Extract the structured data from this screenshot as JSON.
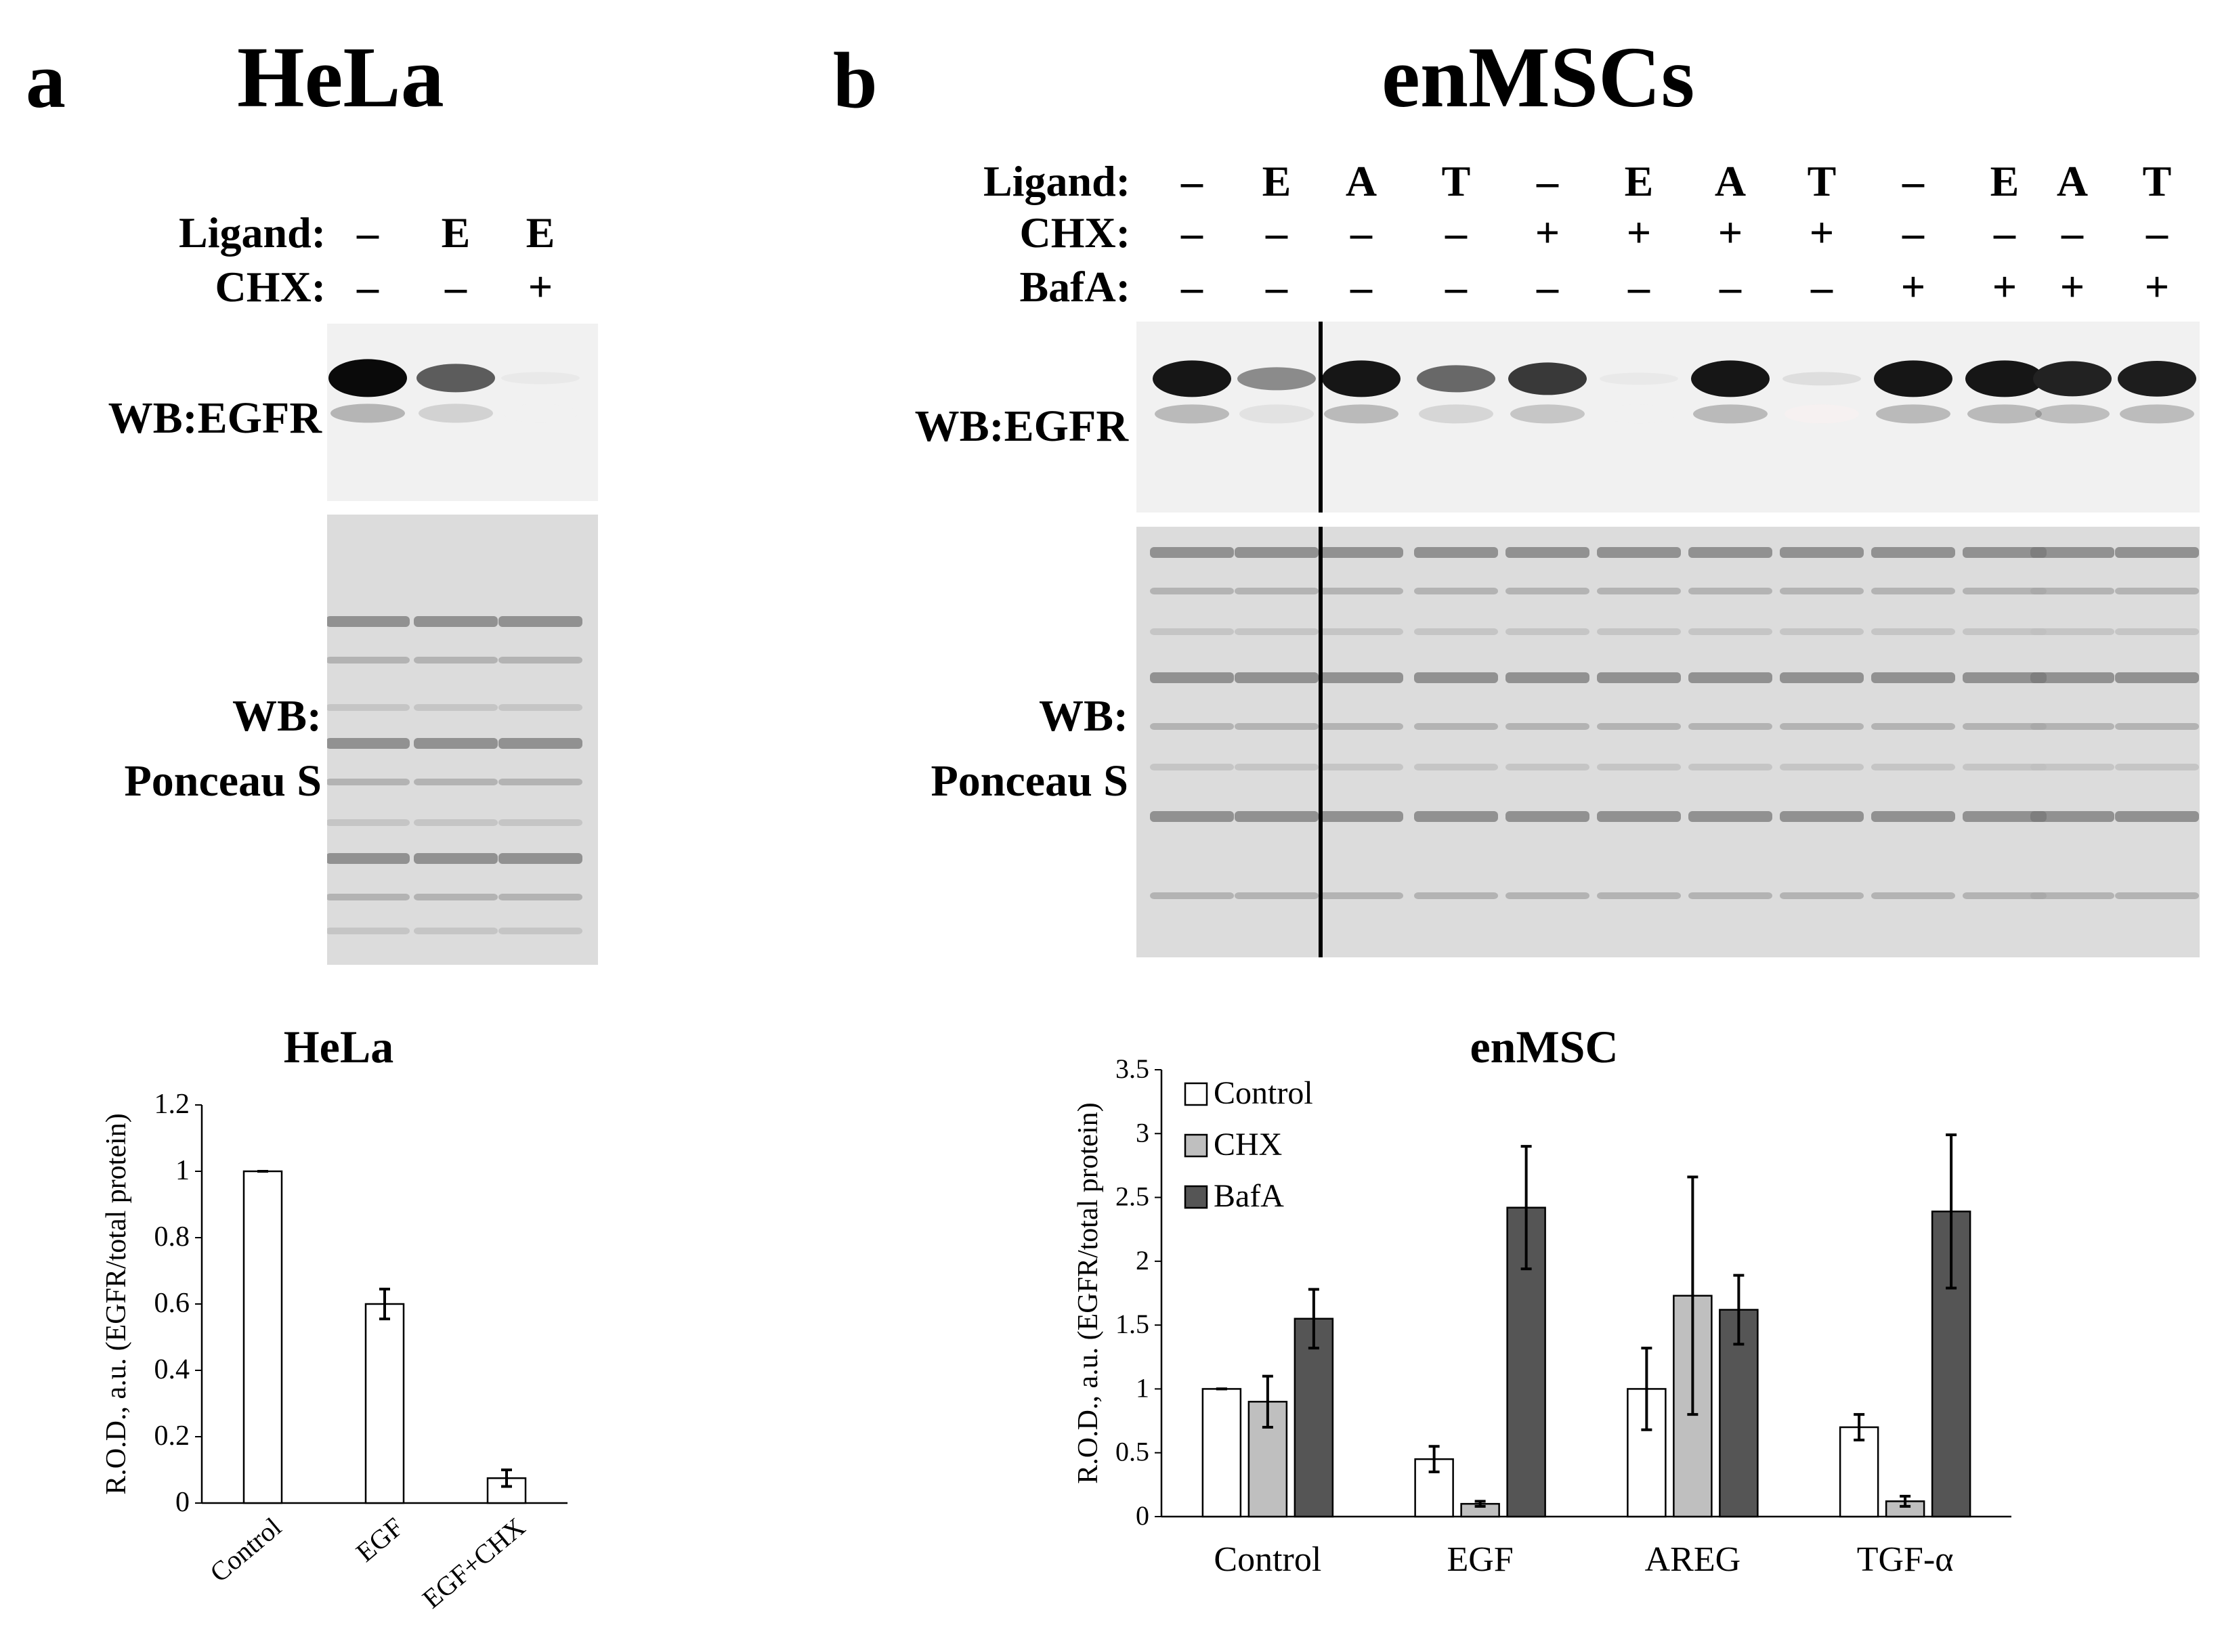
{
  "panel_a": {
    "letter": "a",
    "title": "HeLa",
    "rows": [
      {
        "label": "Ligand:",
        "marks": [
          "–",
          "E",
          "E"
        ]
      },
      {
        "label": "CHX:",
        "marks": [
          "–",
          "–",
          "+"
        ]
      }
    ],
    "wb_egfr_label": "WB:EGFR",
    "wb_ponceau_line1": "WB:",
    "wb_ponceau_line2": "Ponceau S",
    "egfr_band_intensity": [
      1.0,
      0.65,
      0.05
    ]
  },
  "panel_b": {
    "letter": "b",
    "title": "enMSCs",
    "rows": [
      {
        "label": "Ligand:",
        "marks": [
          "–",
          "E",
          "A",
          "T",
          "–",
          "E",
          "A",
          "T",
          "–",
          "E",
          "A",
          "T"
        ]
      },
      {
        "label": "CHX:",
        "marks": [
          "–",
          "–",
          "–",
          "–",
          "+",
          "+",
          "+",
          "+",
          "–",
          "–",
          "–",
          "–"
        ]
      },
      {
        "label": "BafA:",
        "marks": [
          "–",
          "–",
          "–",
          "–",
          "–",
          "–",
          "–",
          "–",
          "+",
          "+",
          "+",
          "+"
        ]
      }
    ],
    "wb_egfr_label": "WB:EGFR",
    "wb_ponceau_line1": "WB:",
    "wb_ponceau_line2": "Ponceau S",
    "egfr_band_intensity": [
      0.95,
      0.45,
      0.95,
      0.6,
      0.8,
      0.05,
      0.95,
      0.1,
      0.95,
      0.95,
      0.9,
      0.92
    ]
  },
  "chart_data": [
    {
      "type": "bar",
      "title": "HeLa",
      "ylabel": "R.O.D., a.u. (EGFR/total protein)",
      "xlabel": "",
      "categories": [
        "Control",
        "EGF",
        "EGF+CHX"
      ],
      "series": [
        {
          "values": [
            1.0,
            0.6,
            0.075
          ],
          "errors": [
            0.0,
            0.045,
            0.025
          ],
          "color": "#ffffff"
        }
      ],
      "ylim": [
        0,
        1.2
      ],
      "yticks": [
        "0",
        "0.2",
        "0.4",
        "0.6",
        "0.8",
        "1",
        "1.2"
      ],
      "grid": false,
      "legend": "none"
    },
    {
      "type": "bar",
      "title": "enMSC",
      "ylabel": "R.O.D., a.u. (EGFR/total protein)",
      "xlabel": "",
      "categories": [
        "Control",
        "EGF",
        "AREG",
        "TGF-α"
      ],
      "series": [
        {
          "name": "Control",
          "values": [
            1.0,
            0.45,
            1.0,
            0.7
          ],
          "errors": [
            0.0,
            0.1,
            0.32,
            0.1
          ],
          "color": "#ffffff"
        },
        {
          "name": "CHX",
          "values": [
            0.9,
            0.1,
            1.73,
            0.12
          ],
          "errors": [
            0.2,
            0.02,
            0.93,
            0.04
          ],
          "color": "#bfbfbf"
        },
        {
          "name": "BafA",
          "values": [
            1.55,
            2.42,
            1.62,
            2.39
          ],
          "errors": [
            0.23,
            0.48,
            0.27,
            0.6
          ],
          "color": "#555555"
        }
      ],
      "ylim": [
        0,
        3.5
      ],
      "yticks": [
        "0",
        "0.5",
        "1",
        "1.5",
        "2",
        "2.5",
        "3",
        "3.5"
      ],
      "grid": false,
      "legend": "top-left"
    }
  ]
}
